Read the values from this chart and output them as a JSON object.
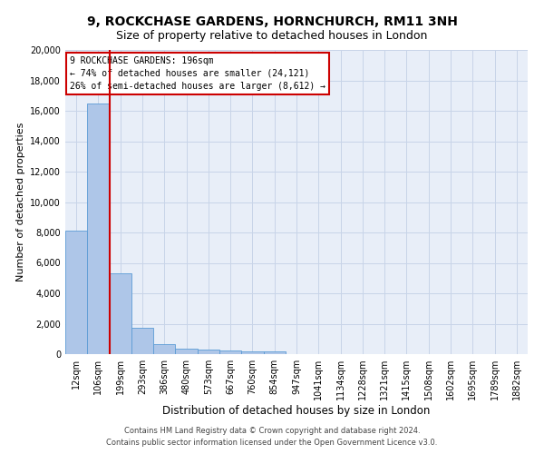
{
  "title": "9, ROCKCHASE GARDENS, HORNCHURCH, RM11 3NH",
  "subtitle": "Size of property relative to detached houses in London",
  "xlabel": "Distribution of detached houses by size in London",
  "ylabel": "Number of detached properties",
  "bar_color": "#aec6e8",
  "bar_edge_color": "#5b9bd5",
  "vline_color": "#cc0000",
  "vline_position": 2,
  "annotation_text": "9 ROCKCHASE GARDENS: 196sqm\n← 74% of detached houses are smaller (24,121)\n26% of semi-detached houses are larger (8,612) →",
  "annotation_box_color": "#cc0000",
  "categories": [
    "12sqm",
    "106sqm",
    "199sqm",
    "293sqm",
    "386sqm",
    "480sqm",
    "573sqm",
    "667sqm",
    "760sqm",
    "854sqm",
    "947sqm",
    "1041sqm",
    "1134sqm",
    "1228sqm",
    "1321sqm",
    "1415sqm",
    "1508sqm",
    "1602sqm",
    "1695sqm",
    "1789sqm",
    "1882sqm"
  ],
  "values": [
    8100,
    16500,
    5300,
    1750,
    650,
    350,
    270,
    220,
    190,
    170,
    0,
    0,
    0,
    0,
    0,
    0,
    0,
    0,
    0,
    0,
    0
  ],
  "ylim": [
    0,
    20000
  ],
  "yticks": [
    0,
    2000,
    4000,
    6000,
    8000,
    10000,
    12000,
    14000,
    16000,
    18000,
    20000
  ],
  "footer_line1": "Contains HM Land Registry data © Crown copyright and database right 2024.",
  "footer_line2": "Contains public sector information licensed under the Open Government Licence v3.0.",
  "background_color": "#ffffff",
  "grid_color": "#c8d4e8",
  "ax_bg_color": "#e8eef8",
  "title_fontsize": 10,
  "subtitle_fontsize": 9,
  "ylabel_fontsize": 8,
  "xlabel_fontsize": 8.5,
  "footer_fontsize": 6,
  "tick_fontsize": 7
}
